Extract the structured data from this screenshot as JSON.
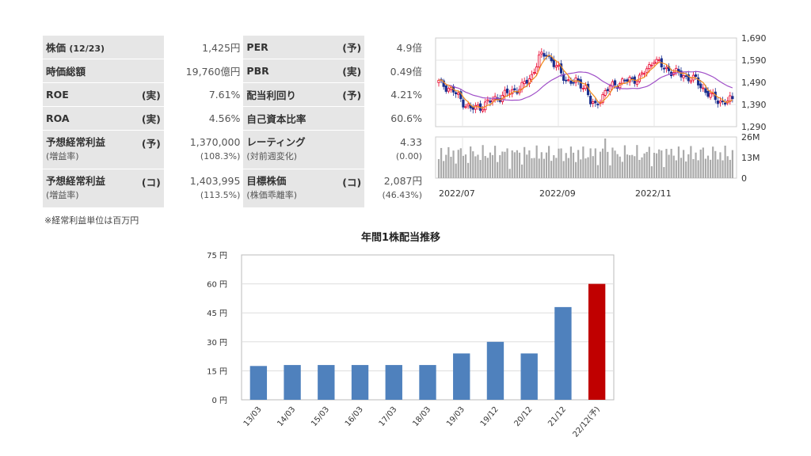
{
  "metrics": {
    "rows": [
      {
        "l_label": "株価",
        "l_label_extra": "(12/23)",
        "l_qual": "",
        "l_value": "1,425円",
        "r_label": "PER",
        "r_qual": "(予)",
        "r_value": "4.9倍"
      },
      {
        "l_label": "時価総額",
        "l_qual": "",
        "l_value": "19,760億円",
        "r_label": "PBR",
        "r_qual": "(実)",
        "r_value": "0.49倍"
      },
      {
        "l_label": "ROE",
        "l_qual": "(実)",
        "l_value": "7.61%",
        "r_label": "配当利回り",
        "r_qual": "(予)",
        "r_value": "4.21%"
      },
      {
        "l_label": "ROA",
        "l_qual": "(実)",
        "l_value": "4.56%",
        "r_label": "自己資本比率",
        "r_qual": "",
        "r_value": "60.6%"
      }
    ],
    "double_rows": [
      {
        "l_label": "予想経常利益",
        "l_qual": "(予)",
        "l_sub": "(増益率)",
        "l_value": "1,370,000",
        "l_sub_value": "(108.3%)",
        "r_label": "レーティング",
        "r_sub": "(対前週変化)",
        "r_value": "4.33",
        "r_sub_value": "(0.00)"
      },
      {
        "l_label": "予想経常利益",
        "l_qual": "(コ)",
        "l_sub": "(増益率)",
        "l_value": "1,403,995",
        "l_sub_value": "(113.5%)",
        "r_label": "目標株価",
        "r_qual": "(コ)",
        "r_sub": "(株価乖離率)",
        "r_value": "2,087円",
        "r_sub_value": "(46.43%)"
      }
    ],
    "note": "※経常利益単位は百万円"
  },
  "stock_chart": {
    "price_ticks": [
      "1,690",
      "1,590",
      "1,490",
      "1,390",
      "1,290"
    ],
    "volume_ticks": [
      "26M",
      "13M",
      "0"
    ],
    "date_labels": [
      "2022/07",
      "2022/09",
      "2022/11"
    ],
    "colors": {
      "up": "#e8002a",
      "down": "#1a2f8f",
      "ma_short": "#f08c1e",
      "ma_long": "#a050c8",
      "volume": "#aaaaaa"
    }
  },
  "chart_data": {
    "type": "bar",
    "title": "年間1株配当推移",
    "categories": [
      "13/03",
      "14/03",
      "15/03",
      "16/03",
      "17/03",
      "18/03",
      "19/03",
      "19/12",
      "20/12",
      "21/12",
      "22/12(予)"
    ],
    "values": [
      17.5,
      18,
      18,
      18,
      18,
      18,
      24,
      30,
      24,
      48,
      60
    ],
    "y_tick_labels": [
      "0 円",
      "15 円",
      "30 円",
      "45 円",
      "60 円",
      "75 円"
    ],
    "ylim": [
      0,
      75
    ],
    "bar_color": "#4f81bd",
    "forecast_color": "#c00000",
    "forecast_index": 10
  }
}
